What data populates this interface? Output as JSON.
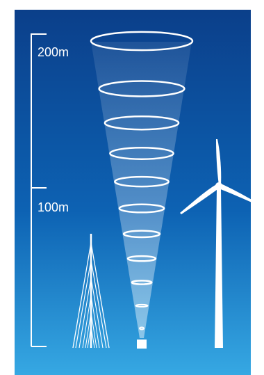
{
  "scale": {
    "top_label": "200m",
    "mid_label": "100m"
  },
  "beam": {
    "ring_count": 11
  },
  "colors": {
    "sky_top": "#0b3f8a",
    "sky_mid": "#0d62b3",
    "sky_bottom": "#36a8e3",
    "foreground": "#ffffff"
  }
}
